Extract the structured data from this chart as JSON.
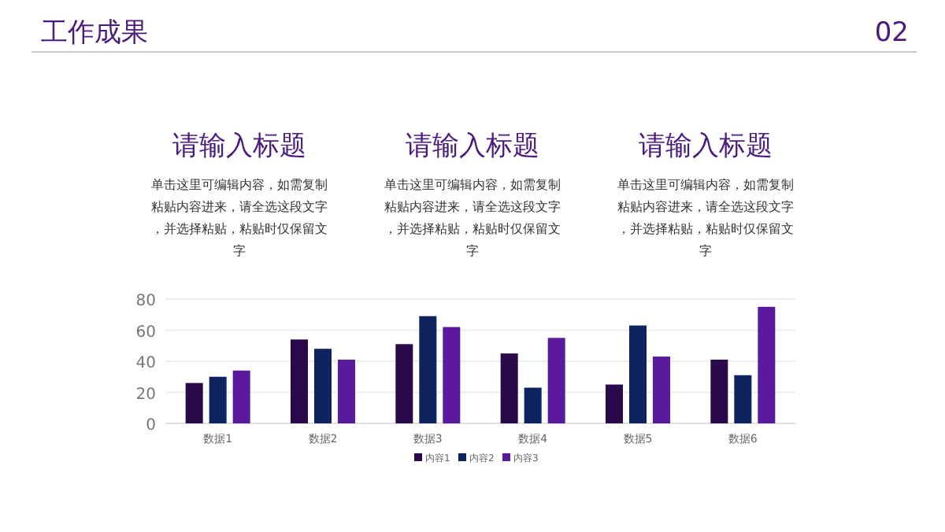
{
  "chart_data": {
    "type": "bar",
    "title": "工作成果",
    "annotations": [
      "02",
      "请输入标题",
      "单击这里可编辑内容，如需复制粘贴内容进来，请全选这段文字，并选择粘贴，粘贴时仅保留文字",
      "请输入标题",
      "单击这里可编辑内容，如需复制粘贴内容进来，请全选这段文字，并选择粘贴，粘贴时仅保留文字",
      "请输入标题",
      "单击这里可编辑内容，如需复制粘贴内容进来，请全选这段文字，并选择粘贴，粘贴时仅保留文字"
    ],
    "categories": [
      "数据1",
      "数据2",
      "数据3",
      "数据4",
      "数据5",
      "数据6"
    ],
    "series": [
      {
        "name": "内容1",
        "color": "#2a0a4a",
        "values": [
          26,
          54,
          51,
          45,
          25,
          41
        ]
      },
      {
        "name": "内容2",
        "color": "#0e2360",
        "values": [
          30,
          48,
          69,
          23,
          63,
          31
        ]
      },
      {
        "name": "内容3",
        "color": "#5b1a9e",
        "values": [
          34,
          41,
          62,
          55,
          43,
          75
        ]
      }
    ],
    "ylim": [
      0,
      80
    ],
    "yticks": [
      0,
      20,
      40,
      60,
      80
    ],
    "grid": "y",
    "legend": "bottom"
  }
}
